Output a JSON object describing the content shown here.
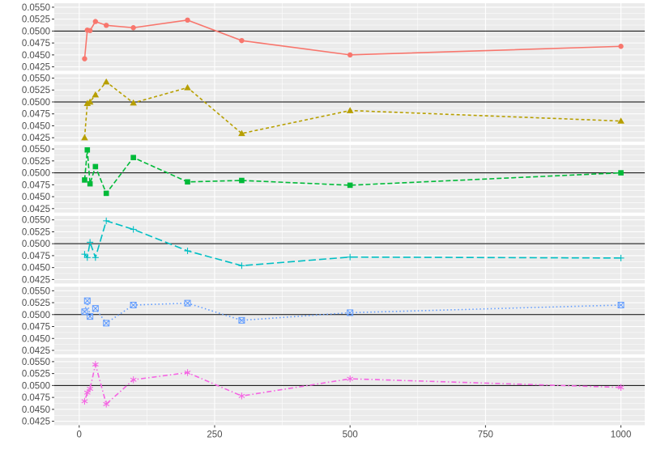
{
  "chart_data": {
    "type": "line",
    "layout": "faceted-vertical",
    "title": "",
    "xlabel": "",
    "ylabel": "",
    "x": [
      10,
      15,
      20,
      30,
      50,
      100,
      200,
      300,
      500,
      1000
    ],
    "xlim": [
      0,
      1000
    ],
    "x_ticks": [
      0,
      250,
      500,
      750,
      1000
    ],
    "ylim": [
      0.04167,
      0.05583
    ],
    "y_ticks": [
      0.0425,
      0.045,
      0.0475,
      0.05,
      0.0525,
      0.055
    ],
    "y_tick_labels": [
      "0.0425",
      "0.0450",
      "0.0475",
      "0.0500",
      "0.0525",
      "0.0550"
    ],
    "reference_line": 0.05,
    "grid": true,
    "legend": "none",
    "series": [
      {
        "color": "#F8766D",
        "linestyle": "solid",
        "marker": "circle",
        "values": [
          0.0442,
          0.0502,
          0.0501,
          0.052,
          0.0512,
          0.0507,
          0.0523,
          0.048,
          0.045,
          0.0468
        ]
      },
      {
        "color": "#B79F00",
        "linestyle": "dashed-short",
        "marker": "triangle",
        "values": [
          0.0425,
          0.0497,
          0.05,
          0.0515,
          0.0542,
          0.0498,
          0.053,
          0.0434,
          0.0482,
          0.046
        ]
      },
      {
        "color": "#00BA38",
        "linestyle": "dashed",
        "marker": "square",
        "values": [
          0.0485,
          0.0548,
          0.0477,
          0.0513,
          0.0457,
          0.0532,
          0.0481,
          0.0484,
          0.0474,
          0.05
        ]
      },
      {
        "color": "#00BFC4",
        "linestyle": "long-dashed",
        "marker": "plus",
        "values": [
          0.0478,
          0.0471,
          0.0503,
          0.0471,
          0.0548,
          0.053,
          0.0485,
          0.0454,
          0.0472,
          0.047
        ]
      },
      {
        "color": "#619CFF",
        "linestyle": "dotted",
        "marker": "boxed-x",
        "values": [
          0.0506,
          0.0529,
          0.0496,
          0.0513,
          0.0482,
          0.052,
          0.0524,
          0.0488,
          0.0504,
          0.052
        ]
      },
      {
        "color": "#F564E3",
        "linestyle": "dash-dot",
        "marker": "asterisk",
        "values": [
          0.0467,
          0.0485,
          0.0493,
          0.0544,
          0.0461,
          0.0512,
          0.0527,
          0.0478,
          0.0514,
          0.0496
        ]
      }
    ]
  }
}
